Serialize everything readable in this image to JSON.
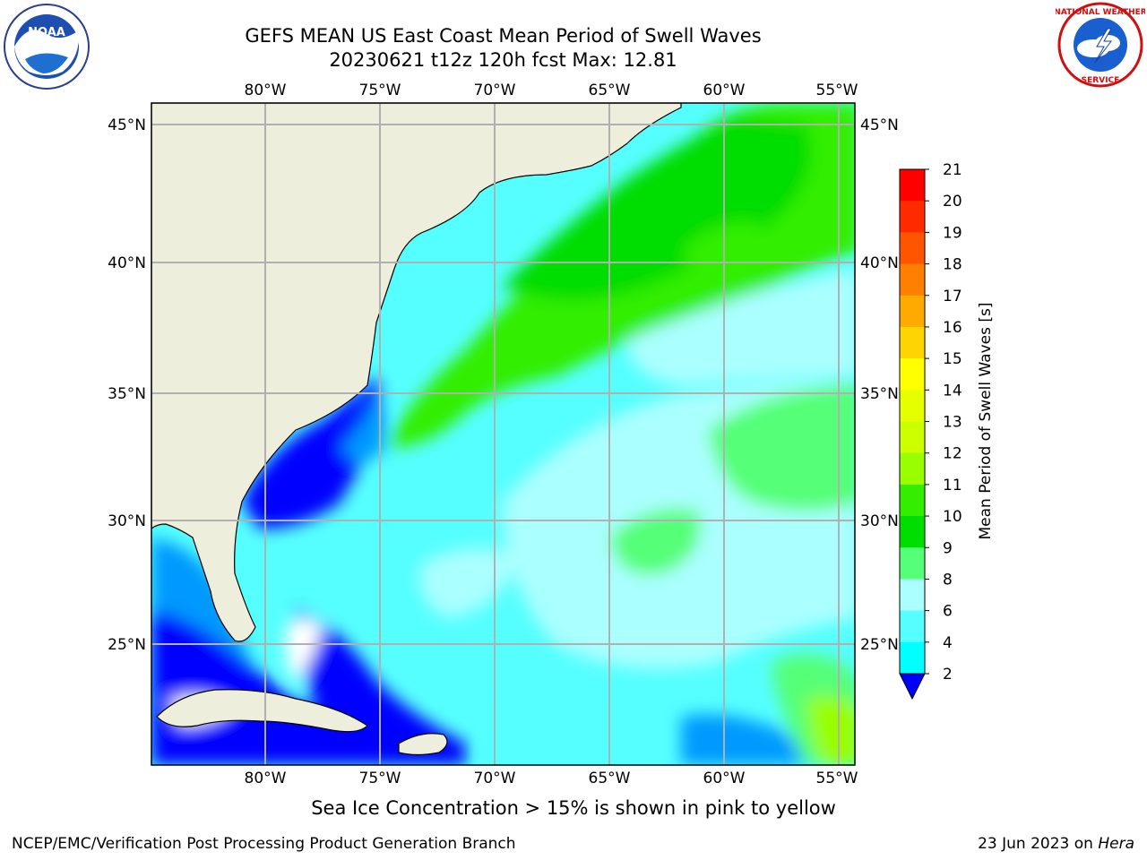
{
  "header": {
    "title_line1": "GEFS MEAN US East Coast Mean Period of Swell Waves",
    "title_line2": "20230621 t12z 120h fcst   Max: 12.81"
  },
  "logos": {
    "left": {
      "name": "noaa-logo",
      "text": "NOAA"
    },
    "right": {
      "name": "nws-logo",
      "text": "NATIONAL WEATHER SERVICE"
    }
  },
  "map": {
    "lon_labels": [
      "80°W",
      "75°W",
      "70°W",
      "65°W",
      "60°W",
      "55°W"
    ],
    "lat_labels": [
      "45°N",
      "40°N",
      "35°N",
      "30°N",
      "25°N"
    ],
    "lon_range": [
      -85,
      -54.5
    ],
    "lat_range": [
      20.5,
      45.9
    ],
    "colors": {
      "land": "#eeeedc",
      "grid": "#b0b0b0",
      "coast": "#000000"
    }
  },
  "colorbar": {
    "label": "Mean Period of Swell Waves [s]",
    "ticks": [
      "21",
      "20",
      "19",
      "18",
      "17",
      "16",
      "15",
      "14",
      "13",
      "12",
      "11",
      "10",
      "9",
      "8",
      "6",
      "4",
      "2"
    ],
    "colors": [
      "#ff0000",
      "#ff2a00",
      "#ff5500",
      "#ff8000",
      "#ffaa00",
      "#ffd500",
      "#ffff00",
      "#e6ff00",
      "#ccff00",
      "#99ff00",
      "#33ee00",
      "#00dd00",
      "#55ff77",
      "#aaffff",
      "#55ffff",
      "#00ffff",
      "#0099ff",
      "#0000ff"
    ]
  },
  "note": "Sea Ice Concentration > 15% is shown in pink to yellow",
  "footer": {
    "left": "NCEP/EMC/Verification Post Processing Product Generation Branch",
    "date": "23 Jun 2023 on",
    "host": "Hera"
  }
}
